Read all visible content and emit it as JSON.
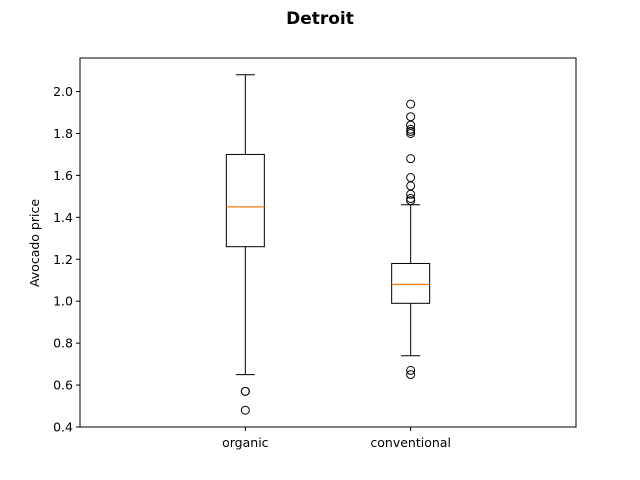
{
  "chart_data": {
    "type": "box",
    "title": "Detroit",
    "xlabel": "",
    "ylabel": "Avocado price",
    "ylim": [
      0.4,
      2.16
    ],
    "yticks": [
      0.4,
      0.6,
      0.8,
      1.0,
      1.2,
      1.4,
      1.6,
      1.8,
      2.0
    ],
    "ytick_labels": [
      "0.4",
      "0.6",
      "0.8",
      "1.0",
      "1.2",
      "1.4",
      "1.6",
      "1.8",
      "2.0"
    ],
    "grid": false,
    "categories": [
      "organic",
      "conventional"
    ],
    "boxes": [
      {
        "category": "organic",
        "whisker_low": 0.65,
        "q1": 1.26,
        "median": 1.45,
        "q3": 1.7,
        "whisker_high": 2.08,
        "outliers": [
          0.57,
          0.57,
          0.48
        ]
      },
      {
        "category": "conventional",
        "whisker_low": 0.74,
        "q1": 0.99,
        "median": 1.08,
        "q3": 1.18,
        "whisker_high": 1.46,
        "outliers": [
          1.48,
          1.49,
          1.51,
          1.55,
          1.59,
          1.68,
          1.8,
          1.81,
          1.82,
          1.84,
          1.88,
          1.94,
          0.67,
          0.65
        ]
      }
    ],
    "colors": {
      "median": "#ff7f0e",
      "box": "#000000"
    }
  }
}
